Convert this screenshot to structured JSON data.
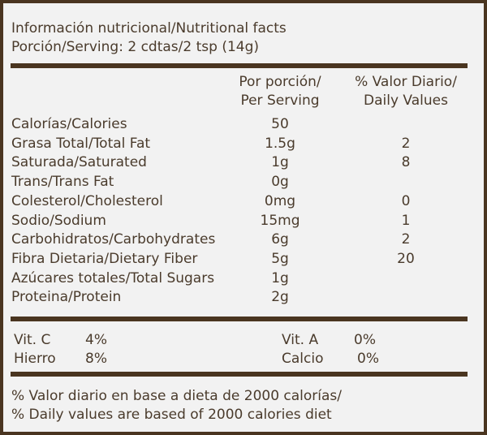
{
  "title": "Información nutricional/Nutritional facts",
  "serving": "Porción/Serving: 2 cdtas/2 tsp (14g)",
  "headers": {
    "per_serving_1": "Por porción/",
    "per_serving_2": "Per Serving",
    "daily_1": "% Valor Diario/",
    "daily_2": "Daily Values"
  },
  "rows": [
    {
      "name": "Calorías/Calories",
      "amount": "50",
      "dv": ""
    },
    {
      "name": "Grasa Total/Total Fat",
      "amount": "1.5g",
      "dv": "2"
    },
    {
      "name": "Saturada/Saturated",
      "amount": "1g",
      "dv": "8"
    },
    {
      "name": "Trans/Trans Fat",
      "amount": "0g",
      "dv": ""
    },
    {
      "name": "Colesterol/Cholesterol",
      "amount": "0mg",
      "dv": "0"
    },
    {
      "name": "Sodio/Sodium",
      "amount": "15mg",
      "dv": "1"
    },
    {
      "name": "Carbohidratos/Carbohydrates",
      "amount": "6g",
      "dv": "2"
    },
    {
      "name": "Fibra Dietaria/Dietary Fiber",
      "amount": "5g",
      "dv": "20"
    },
    {
      "name": "Azúcares totales/Total Sugars",
      "amount": "1g",
      "dv": ""
    },
    {
      "name": "Proteina/Protein",
      "amount": "2g",
      "dv": ""
    }
  ],
  "vitamins": [
    {
      "name": "Vit. C",
      "value": "4%"
    },
    {
      "name": "Vit. A",
      "value": "0%"
    },
    {
      "name": "Hierro",
      "value": "8%"
    },
    {
      "name": "Calcio",
      "value": "0%"
    }
  ],
  "footer_1": "% Valor diario en base a dieta de 2000 calorías/",
  "footer_2": "% Daily values are based of 2000 calories diet",
  "colors": {
    "border": "#4a3520",
    "text": "#4a3b2c",
    "background": "#f2f2f2"
  }
}
